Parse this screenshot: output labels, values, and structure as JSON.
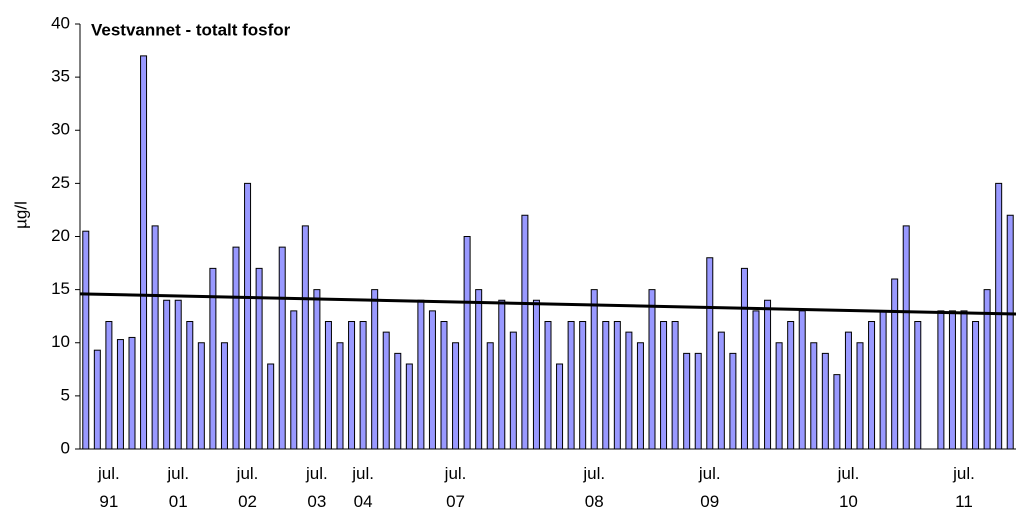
{
  "chart_data": {
    "type": "bar",
    "title": "Vestvannet - totalt fosfor",
    "y_label": "µg/l",
    "categories": [
      null,
      null,
      "jul.\n91",
      null,
      null,
      null,
      null,
      null,
      "jul.\n01",
      null,
      null,
      null,
      null,
      null,
      "jul.\n02",
      null,
      null,
      null,
      null,
      null,
      "jul.\n03",
      null,
      null,
      null,
      "jul.\n04",
      null,
      null,
      null,
      null,
      null,
      null,
      null,
      "jul.\n07",
      null,
      null,
      null,
      null,
      null,
      null,
      null,
      null,
      null,
      null,
      null,
      "jul.\n08",
      null,
      null,
      null,
      null,
      null,
      null,
      null,
      null,
      null,
      "jul.\n09",
      null,
      null,
      null,
      null,
      null,
      null,
      null,
      null,
      null,
      null,
      null,
      "jul.\n10",
      null,
      null,
      null,
      null,
      null,
      null,
      null,
      null,
      null,
      "jul.\n11",
      null,
      null,
      null,
      null
    ],
    "values": [
      20.5,
      9.3,
      12,
      10.3,
      10.5,
      37,
      21,
      14,
      14,
      12,
      10,
      17,
      10,
      19,
      25,
      17,
      8,
      19,
      13,
      21,
      15,
      12,
      10,
      12,
      12,
      15,
      11,
      9,
      8,
      14,
      13,
      12,
      10,
      20,
      15,
      10,
      14,
      11,
      22,
      14,
      12,
      8,
      12,
      12,
      15,
      12,
      12,
      11,
      10,
      15,
      12,
      12,
      9,
      9,
      18,
      11,
      9,
      17,
      13,
      14,
      10,
      12,
      13,
      10,
      9,
      7,
      11,
      10,
      12,
      13,
      16,
      21,
      12,
      null,
      13,
      13,
      13,
      12,
      15,
      25,
      22
    ],
    "color": "#9999ff",
    "trend": {
      "values": [
        14.6,
        12.7
      ],
      "color": "#000000"
    },
    "ylim": [
      0,
      40
    ],
    "yticks": [
      0,
      5,
      10,
      15,
      20,
      25,
      30,
      35,
      40
    ],
    "grid": false
  }
}
